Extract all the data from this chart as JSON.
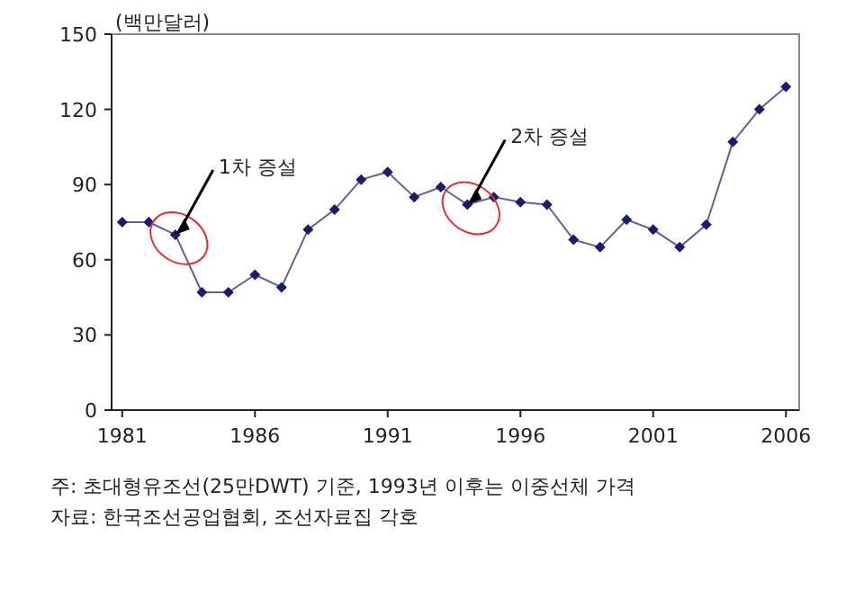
{
  "chart_data": {
    "type": "line",
    "ylabel": "(백만달러)",
    "x": [
      1981,
      1982,
      1983,
      1984,
      1985,
      1986,
      1987,
      1988,
      1989,
      1990,
      1991,
      1992,
      1993,
      1994,
      1995,
      1996,
      1997,
      1998,
      1999,
      2000,
      2001,
      2002,
      2003,
      2004,
      2005,
      2006
    ],
    "series": [
      {
        "color": "#1c1c6e",
        "values": [
          75,
          75,
          70,
          47,
          47,
          54,
          49,
          72,
          80,
          92,
          95,
          85,
          89,
          82,
          85,
          83,
          82,
          68,
          65,
          76,
          72,
          65,
          74,
          107,
          120,
          129
        ]
      }
    ],
    "xlim": [
      1980.6,
      2006.5
    ],
    "xticks": [
      1981,
      1986,
      1991,
      1996,
      2001,
      2006
    ],
    "ylim": [
      0,
      150
    ],
    "yticks": [
      0,
      30,
      60,
      90,
      120,
      150
    ],
    "marker": "diamond",
    "line_style": "solid",
    "grid": false,
    "annotations": [
      {
        "text": "1차 증설",
        "x": 1983,
        "y": 70
      },
      {
        "text": "2차 증설",
        "x": 1994,
        "y": 82
      },
      "주: 초대형유조선(25만DWT) 기준, 1993년 이후는 이중선체 가격",
      "자료: 한국조선공업협회, 조선자료집 각호"
    ]
  }
}
